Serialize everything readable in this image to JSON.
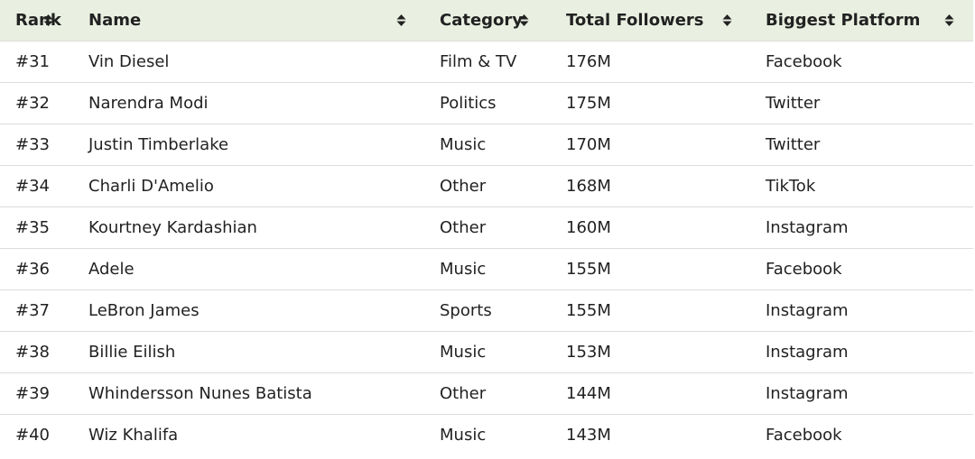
{
  "table": {
    "headers": [
      "Rank",
      "Name",
      "Category",
      "Total Followers",
      "Biggest Platform"
    ],
    "rows": [
      [
        "#31",
        "Vin Diesel",
        "Film & TV",
        "176M",
        "Facebook"
      ],
      [
        "#32",
        "Narendra Modi",
        "Politics",
        "175M",
        "Twitter"
      ],
      [
        "#33",
        "Justin Timberlake",
        "Music",
        "170M",
        "Twitter"
      ],
      [
        "#34",
        "Charli D'Amelio",
        "Other",
        "168M",
        "TikTok"
      ],
      [
        "#35",
        "Kourtney Kardashian",
        "Other",
        "160M",
        "Instagram"
      ],
      [
        "#36",
        "Adele",
        "Music",
        "155M",
        "Facebook"
      ],
      [
        "#37",
        "LeBron James",
        "Sports",
        "155M",
        "Instagram"
      ],
      [
        "#38",
        "Billie Eilish",
        "Music",
        "153M",
        "Instagram"
      ],
      [
        "#39",
        "Whindersson Nunes Batista",
        "Other",
        "144M",
        "Instagram"
      ],
      [
        "#40",
        "Wiz Khalifa",
        "Music",
        "143M",
        "Facebook"
      ]
    ]
  }
}
